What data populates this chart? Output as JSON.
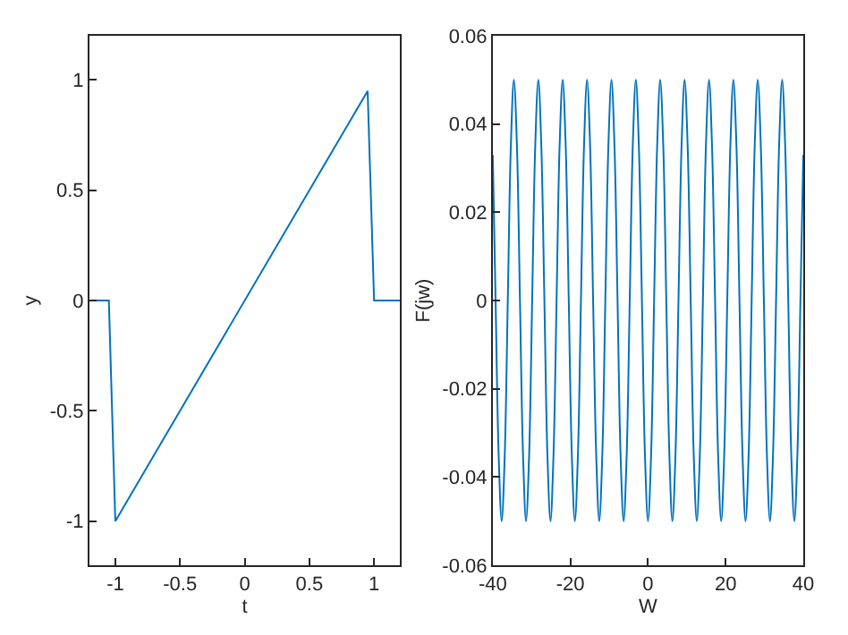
{
  "chart_data": [
    {
      "type": "line",
      "xlabel": "t",
      "ylabel": "y",
      "xlim": [
        -1.2,
        1.2
      ],
      "ylim": [
        -1.2,
        1.2
      ],
      "xticks": [
        -1,
        -0.5,
        0,
        0.5,
        1
      ],
      "yticks": [
        -1,
        -0.5,
        0,
        0.5,
        1
      ],
      "series": [
        {
          "color": "#0072bd",
          "x": [
            -1.2,
            -1.05,
            -1.0,
            0.95,
            1.0,
            1.2
          ],
          "values": [
            0,
            0,
            -1,
            0.95,
            0,
            0
          ]
        }
      ]
    },
    {
      "type": "line",
      "xlabel": "W",
      "ylabel": "F(jw)",
      "xlim": [
        -40,
        40
      ],
      "ylim": [
        -0.06,
        0.06
      ],
      "xticks": [
        -40,
        -20,
        0,
        20,
        40
      ],
      "yticks": [
        -0.06,
        -0.04,
        -0.02,
        0,
        0.02,
        0.04,
        0.06
      ],
      "series": [
        {
          "color": "#0072bd",
          "x": [
            -40,
            -39.27,
            -38.48,
            -37.7,
            -36.91,
            -36.13,
            -35.34,
            -34.56,
            -33.77,
            -32.99,
            -32.2,
            -31.42,
            -30.63,
            -29.85,
            -29.06,
            -28.27,
            -27.49,
            -26.7,
            -25.92,
            -25.13,
            -24.35,
            -23.56,
            -22.78,
            -21.99,
            -21.21,
            -20.42,
            -19.63,
            -18.85,
            -18.06,
            -17.28,
            -16.49,
            -15.71,
            -14.92,
            -14.14,
            -13.35,
            -12.57,
            -11.78,
            -11.0,
            -10.21,
            -9.42,
            -8.64,
            -7.85,
            -7.07,
            -6.28,
            -5.5,
            -4.71,
            -3.93,
            -3.14,
            -2.36,
            -1.57,
            -0.79,
            0,
            0.79,
            1.57,
            2.36,
            3.14,
            3.93,
            4.71,
            5.5,
            6.28,
            7.07,
            7.85,
            8.64,
            9.42,
            10.21,
            11.0,
            11.78,
            12.57,
            13.35,
            14.14,
            14.92,
            15.71,
            16.49,
            17.28,
            18.06,
            18.85,
            19.63,
            20.42,
            21.21,
            21.99,
            22.78,
            23.56,
            24.35,
            25.13,
            25.92,
            26.7,
            27.49,
            28.27,
            29.06,
            29.85,
            30.63,
            31.42,
            32.2,
            32.99,
            33.77,
            34.56,
            35.34,
            36.13,
            36.91,
            37.7,
            38.48,
            39.27,
            40
          ],
          "values": [
            0.033,
            0,
            -0.035,
            -0.05,
            -0.035,
            0,
            0.035,
            0.05,
            0.035,
            0,
            -0.035,
            -0.05,
            -0.035,
            0,
            0.035,
            0.05,
            0.035,
            0,
            -0.035,
            -0.05,
            -0.035,
            0,
            0.035,
            0.05,
            0.035,
            0,
            -0.035,
            -0.05,
            -0.035,
            0,
            0.035,
            0.05,
            0.035,
            0,
            -0.035,
            -0.05,
            -0.035,
            0,
            0.035,
            0.05,
            0.035,
            0,
            -0.035,
            -0.05,
            -0.035,
            0,
            0.035,
            0.05,
            0.035,
            0,
            -0.035,
            -0.05,
            -0.035,
            0,
            0.035,
            0.05,
            0.035,
            0,
            -0.035,
            -0.05,
            -0.035,
            0,
            0.035,
            0.05,
            0.035,
            0,
            -0.035,
            -0.05,
            -0.035,
            0,
            0.035,
            0.05,
            0.035,
            0,
            -0.035,
            -0.05,
            -0.035,
            0,
            0.035,
            0.05,
            0.035,
            0,
            -0.035,
            -0.05,
            -0.035,
            0,
            0.035,
            0.05,
            0.035,
            0,
            -0.035,
            -0.05,
            -0.035,
            0,
            0.035,
            0.05,
            0.035,
            0,
            -0.035,
            -0.05,
            -0.035,
            0,
            0.033
          ]
        }
      ]
    }
  ]
}
